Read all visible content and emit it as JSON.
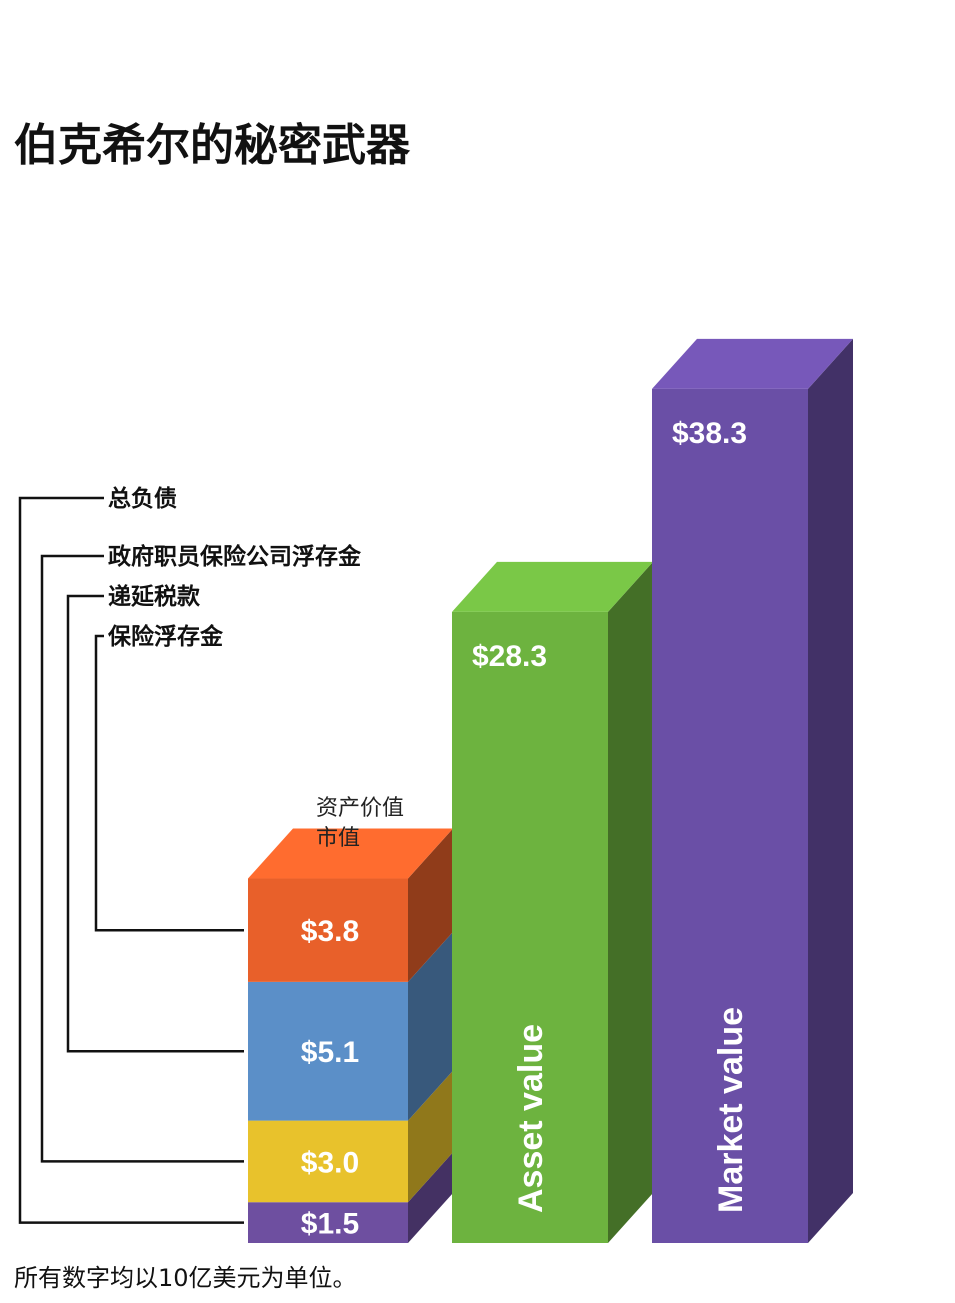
{
  "title": "伯克希尔的秘密武器",
  "footnote": "所有数字均以10亿美元为单位。",
  "stack_caption_line1": "资产价值",
  "stack_caption_line2": "市值",
  "colors": {
    "insurance_float": "#e8602a",
    "deferred_taxes": "#5b8fc8",
    "geico_float": "#e8c22c",
    "total_liabilities": "#6e4fa0",
    "asset_value": "#6db33f",
    "market_value": "#6a4fa6"
  },
  "chart_data": {
    "type": "bar",
    "title": "伯克希尔的秘密武器",
    "unit_note": "所有数字均以10亿美元为单位。",
    "stacked_bar": {
      "segments": [
        {
          "name": "总负债",
          "value": 1.5,
          "label": "$1.5"
        },
        {
          "name": "政府职员保险公司浮存金",
          "value": 3.0,
          "label": "$3.0"
        },
        {
          "name": "递延税款",
          "value": 5.1,
          "label": "$5.1"
        },
        {
          "name": "保险浮存金",
          "value": 3.8,
          "label": "$3.8"
        }
      ]
    },
    "bars": [
      {
        "name": "Asset value",
        "value": 28.3,
        "label": "$28.3"
      },
      {
        "name": "Market value",
        "value": 38.3,
        "label": "$38.3"
      }
    ],
    "legend": [
      "总负债",
      "政府职员保险公司浮存金",
      "递延税款",
      "保险浮存金"
    ]
  }
}
